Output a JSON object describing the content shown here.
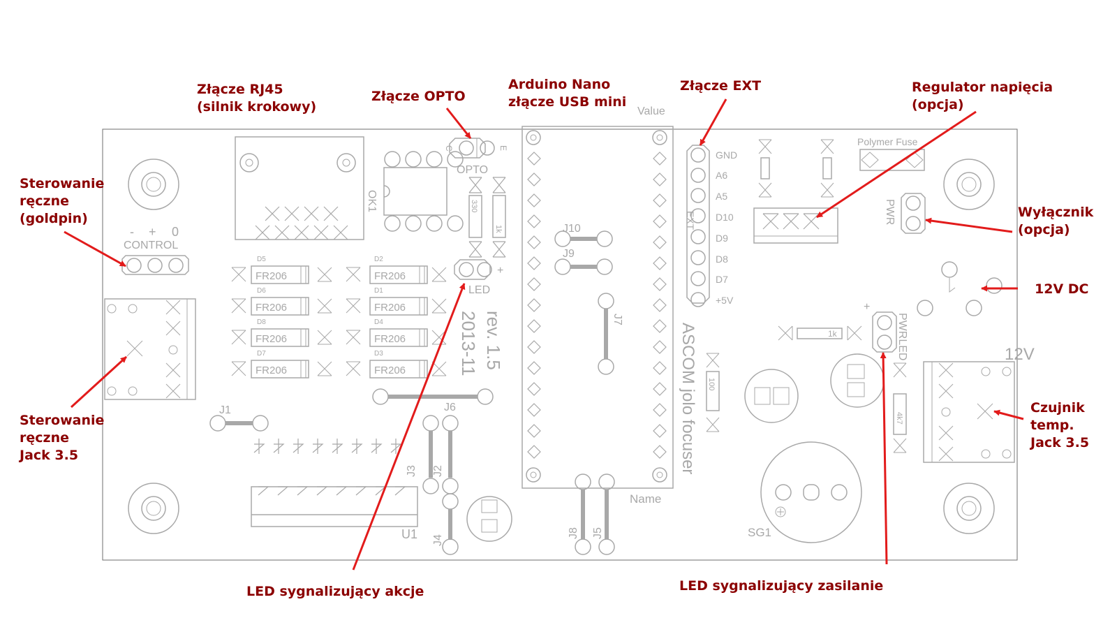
{
  "callouts": {
    "rj45": [
      "Złącze RJ45",
      "(silnik krokowy)"
    ],
    "opto": [
      "Złącze OPTO"
    ],
    "arduino": [
      "Arduino Nano",
      "złącze USB mini"
    ],
    "ext": [
      "Złącze EXT"
    ],
    "regulator": [
      "Regulator napięcia",
      "(opcja)"
    ],
    "manual_goldpin": [
      "Sterowanie",
      "ręczne",
      "(goldpin)"
    ],
    "switch": [
      "Wyłącznik",
      "(opcja)"
    ],
    "dc12v": [
      "12V DC"
    ],
    "manual_jack": [
      "Sterowanie",
      "ręczne",
      "Jack 3.5"
    ],
    "temp_sensor": [
      "Czujnik",
      "temp.",
      "Jack 3.5"
    ],
    "led_action": [
      "LED sygnalizujący akcje"
    ],
    "led_power": [
      "LED sygnalizujący zasilanie"
    ]
  },
  "silkscreen": {
    "control": "CONTROL",
    "control_pins": [
      "-",
      "+",
      "0"
    ],
    "ok1": "OK1",
    "opto": "OPTO",
    "opto_c": "C",
    "opto_e": "E",
    "led": "LED",
    "plus": "+",
    "r330": "330",
    "r1k": "1k",
    "diode": "FR206",
    "diode_refs": [
      "D5",
      "D6",
      "D8",
      "D7",
      "D2",
      "D1",
      "D4",
      "D3"
    ],
    "rev": "rev. 1.5",
    "date": "2013-11",
    "j1": "J1",
    "j2": "J2",
    "j3": "J3",
    "j4": "J4",
    "j5": "J5",
    "j6": "J6",
    "j7": "J7",
    "j8": "J8",
    "j9": "J9",
    "j10": "J10",
    "u1": "U1",
    "value": "Value",
    "name": "Name",
    "ext": "EXT",
    "ext_pins": [
      "GND",
      "A6",
      "A5",
      "D10",
      "D9",
      "D8",
      "D7",
      "+5V"
    ],
    "ascom": "ASCOM jolo focuser",
    "polyfuse": "Polymer Fuse",
    "pwr": "PWR",
    "pwrled": "PWRLED",
    "r_pwr_1k": "1k",
    "r100": "100",
    "r4k7": "4k7",
    "v12": "12V",
    "sg1": "SG1"
  },
  "colors": {
    "callout_text": "#8b0000",
    "arrow": "#e21b1b",
    "silk": "#a8a8a8",
    "board_outline": "#6e6e6e"
  }
}
